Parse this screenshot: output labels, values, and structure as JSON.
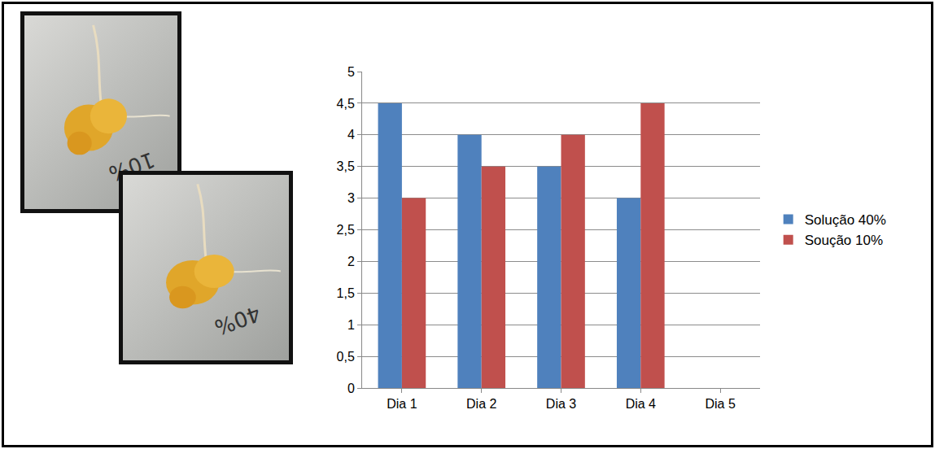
{
  "chart_data": {
    "type": "bar",
    "categories": [
      "Dia 1",
      "Dia 2",
      "Dia 3",
      "Dia 4",
      "Dia 5"
    ],
    "series": [
      {
        "name": "Solução 40%",
        "color": "#4f81bd",
        "values": [
          4.5,
          4,
          3.5,
          3,
          null
        ]
      },
      {
        "name": "Soução 10%",
        "color": "#c0504d",
        "values": [
          3,
          3.5,
          4,
          4.5,
          null
        ]
      }
    ],
    "ylim": [
      0,
      5
    ],
    "yticks": [
      0,
      {
        "value": 0.5,
        "label": "0,5"
      },
      1,
      {
        "value": 1.5,
        "label": "1,5"
      },
      2,
      {
        "value": 2.5,
        "label": "2,5"
      },
      3,
      {
        "value": 3.5,
        "label": "3,5"
      },
      4,
      {
        "value": 4.5,
        "label": "4,5"
      },
      5
    ],
    "grid": true,
    "legend": "right"
  },
  "photos": [
    {
      "label": "10%"
    },
    {
      "label": "40%"
    }
  ]
}
